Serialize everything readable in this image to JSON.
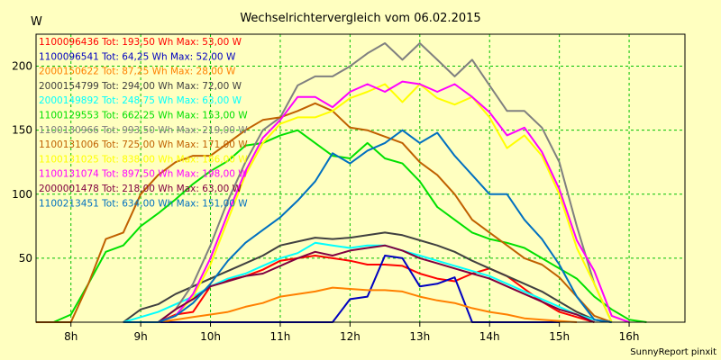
{
  "chart_data": {
    "type": "line",
    "title": "Wechselrichtervergleich vom 06.02.2015",
    "ylabel": "W",
    "xlabel": "",
    "credit": "SunnyReport pinxit",
    "x_ticks": [
      "8h",
      "9h",
      "10h",
      "11h",
      "12h",
      "13h",
      "14h",
      "15h",
      "16h"
    ],
    "y_ticks": [
      50,
      100,
      150,
      200
    ],
    "xlim": [
      7.5,
      16.8
    ],
    "ylim": [
      0,
      225
    ],
    "grid": true,
    "legend_position": "top-left",
    "x": [
      7.5,
      7.75,
      8.0,
      8.25,
      8.5,
      8.75,
      9.0,
      9.25,
      9.5,
      9.75,
      10.0,
      10.25,
      10.5,
      10.75,
      11.0,
      11.25,
      11.5,
      11.75,
      12.0,
      12.25,
      12.5,
      12.75,
      13.0,
      13.25,
      13.5,
      13.75,
      14.0,
      14.25,
      14.5,
      14.75,
      15.0,
      15.25,
      15.5,
      15.75,
      16.0,
      16.25,
      16.5,
      16.75
    ],
    "series": [
      {
        "name": "1100096436",
        "label": "1100096436 Tot: 193,50 Wh Max: 53,00 W",
        "color": "#ff0000",
        "values": [
          null,
          null,
          null,
          null,
          null,
          0,
          0,
          0,
          6,
          8,
          28,
          33,
          36,
          41,
          48,
          50,
          52,
          50,
          48,
          45,
          45,
          44,
          38,
          34,
          32,
          38,
          42,
          36,
          26,
          16,
          8,
          4,
          0,
          null,
          null,
          null,
          null,
          null
        ]
      },
      {
        "name": "1100096541",
        "label": "1100096541 Tot: 64,25 Wh Max: 52,00 W",
        "color": "#0000c0",
        "values": [
          null,
          null,
          null,
          null,
          null,
          null,
          null,
          0,
          0,
          0,
          0,
          0,
          0,
          0,
          0,
          0,
          0,
          0,
          18,
          20,
          52,
          50,
          28,
          30,
          35,
          0,
          0,
          0,
          0,
          0,
          0,
          null,
          null,
          null,
          null,
          null,
          null,
          null
        ]
      },
      {
        "name": "2000150622",
        "label": "2000150622 Tot: 87,25 Wh Max: 28,00 W",
        "color": "#ff8000",
        "values": [
          null,
          null,
          null,
          null,
          null,
          0,
          0,
          0,
          2,
          4,
          6,
          8,
          12,
          15,
          20,
          22,
          24,
          27,
          26,
          25,
          25,
          24,
          20,
          17,
          15,
          11,
          8,
          6,
          3,
          2,
          1,
          0,
          null,
          null,
          null,
          null,
          null,
          null
        ]
      },
      {
        "name": "2000154799",
        "label": "2000154799 Tot: 294,00 Wh Max: 72,00 W",
        "color": "#404040",
        "values": [
          null,
          null,
          null,
          null,
          null,
          0,
          10,
          14,
          22,
          28,
          34,
          40,
          46,
          52,
          60,
          63,
          66,
          65,
          66,
          68,
          70,
          68,
          64,
          60,
          55,
          48,
          42,
          36,
          30,
          24,
          16,
          8,
          2,
          0,
          null,
          null,
          null,
          null
        ]
      },
      {
        "name": "2000149892",
        "label": "2000149892 Tot: 248,75 Wh Max: 63,00 W",
        "color": "#00ffff",
        "values": [
          null,
          null,
          null,
          null,
          null,
          0,
          4,
          8,
          14,
          20,
          28,
          34,
          38,
          44,
          50,
          54,
          62,
          60,
          58,
          60,
          60,
          56,
          52,
          48,
          44,
          40,
          36,
          30,
          24,
          18,
          12,
          6,
          2,
          0,
          null,
          null,
          null,
          null
        ]
      },
      {
        "name": "1100129553",
        "label": "1100129553 Tot: 662,25 Wh Max: 153,00 W",
        "color": "#00e000",
        "values": [
          0,
          0,
          6,
          30,
          55,
          60,
          75,
          85,
          96,
          108,
          118,
          126,
          138,
          140,
          146,
          150,
          140,
          130,
          128,
          140,
          128,
          124,
          110,
          90,
          80,
          70,
          65,
          62,
          58,
          50,
          42,
          34,
          20,
          10,
          2,
          0,
          null,
          null
        ]
      },
      {
        "name": "1100130966",
        "label": "1100130966 Tot: 993,50 Wh Max: 219,00 W",
        "color": "#808080",
        "values": [
          null,
          null,
          null,
          null,
          null,
          0,
          0,
          0,
          10,
          30,
          60,
          95,
          125,
          150,
          160,
          185,
          192,
          192,
          200,
          210,
          218,
          205,
          218,
          205,
          192,
          205,
          185,
          165,
          165,
          152,
          125,
          75,
          30,
          0,
          null,
          null,
          null,
          null
        ]
      },
      {
        "name": "1100131006",
        "label": "1100131006 Tot: 725,00 Wh Max: 171,00 W",
        "color": "#c06000",
        "values": [
          0,
          0,
          0,
          30,
          65,
          70,
          100,
          115,
          125,
          130,
          130,
          140,
          150,
          158,
          160,
          165,
          171,
          165,
          152,
          150,
          145,
          140,
          125,
          115,
          100,
          80,
          70,
          60,
          50,
          45,
          35,
          20,
          5,
          0,
          null,
          null,
          null,
          null
        ]
      },
      {
        "name": "1100131025",
        "label": "1100131025 Tot: 838,00 Wh Max: 186,00 W",
        "color": "#ffff00",
        "values": [
          null,
          null,
          null,
          null,
          null,
          0,
          0,
          0,
          5,
          20,
          45,
          80,
          115,
          140,
          155,
          160,
          160,
          165,
          175,
          180,
          186,
          172,
          186,
          175,
          170,
          176,
          160,
          136,
          146,
          130,
          100,
          58,
          30,
          0,
          null,
          null,
          null,
          null
        ]
      },
      {
        "name": "1100131074",
        "label": "1100131074 Tot: 897,50 Wh Max: 198,00 W",
        "color": "#ff00ff",
        "values": [
          null,
          null,
          null,
          null,
          null,
          0,
          0,
          0,
          5,
          22,
          50,
          85,
          118,
          144,
          158,
          176,
          176,
          168,
          180,
          186,
          180,
          188,
          186,
          180,
          186,
          176,
          164,
          146,
          152,
          133,
          104,
          64,
          40,
          5,
          0,
          null,
          null,
          null
        ]
      },
      {
        "name": "2000001478",
        "label": "2000001478 Tot: 218,00 Wh Max: 63,00 W",
        "color": "#800040",
        "values": [
          null,
          null,
          null,
          null,
          null,
          0,
          0,
          0,
          10,
          18,
          28,
          32,
          36,
          38,
          44,
          50,
          55,
          52,
          56,
          58,
          60,
          56,
          50,
          46,
          42,
          38,
          34,
          28,
          22,
          16,
          10,
          6,
          0,
          null,
          null,
          null,
          null,
          null
        ]
      },
      {
        "name": "1100213451",
        "label": "1100213451 Tot: 634,00 Wh Max: 151,00 W",
        "color": "#0070c0",
        "values": [
          null,
          null,
          null,
          null,
          null,
          0,
          0,
          0,
          5,
          15,
          30,
          48,
          62,
          72,
          82,
          95,
          110,
          132,
          124,
          134,
          140,
          150,
          140,
          148,
          130,
          115,
          100,
          100,
          80,
          65,
          45,
          20,
          2,
          0,
          null,
          null,
          null,
          null
        ]
      }
    ]
  }
}
